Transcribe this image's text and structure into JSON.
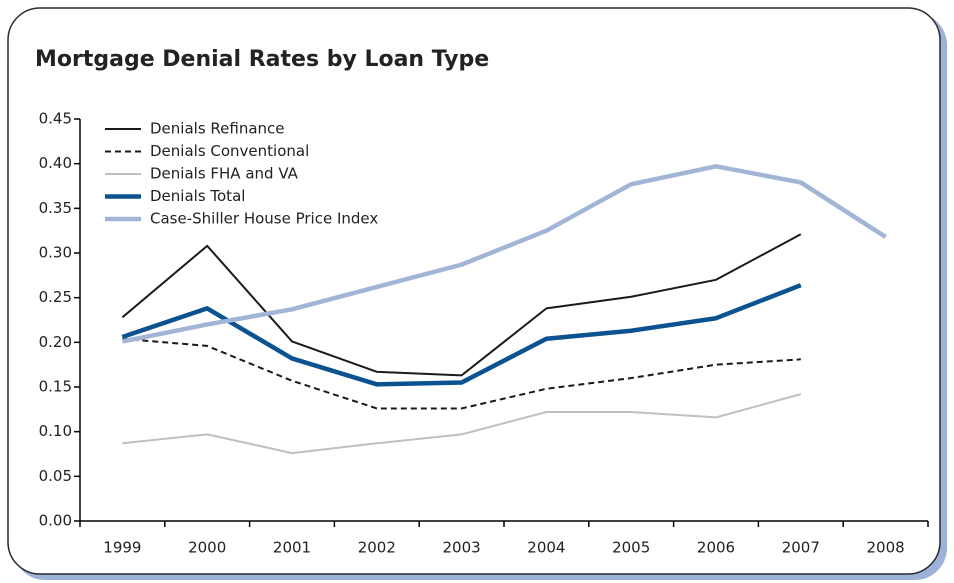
{
  "chart_data": {
    "type": "line",
    "title": "Mortgage Denial Rates by Loan Type",
    "categories": [
      "1999",
      "2000",
      "2001",
      "2002",
      "2003",
      "2004",
      "2005",
      "2006",
      "2007",
      "2008"
    ],
    "ylim": [
      0,
      0.45
    ],
    "yticks": [
      {
        "value": 0,
        "label": "0.00"
      },
      {
        "value": 0.05,
        "label": "0.05"
      },
      {
        "value": 0.1,
        "label": "0.10"
      },
      {
        "value": 0.15,
        "label": "0.15"
      },
      {
        "value": 0.2,
        "label": "0.20"
      },
      {
        "value": 0.25,
        "label": "0.25"
      },
      {
        "value": 0.3,
        "label": "0.30"
      },
      {
        "value": 0.35,
        "label": "0.35"
      },
      {
        "value": 0.4,
        "label": "0.40"
      },
      {
        "value": 0.45,
        "label": "0.45"
      }
    ],
    "grid": false,
    "legend": "upper left",
    "series": [
      {
        "name": "Denials Refinance",
        "color": "#1a1a1a",
        "width": 2,
        "style": "solid",
        "values": [
          0.228,
          0.308,
          0.201,
          0.167,
          0.163,
          0.238,
          0.251,
          0.27,
          0.321,
          null
        ]
      },
      {
        "name": "Denials Conventional",
        "color": "#1a1a1a",
        "width": 2,
        "style": "dashed",
        "values": [
          0.204,
          0.196,
          0.157,
          0.126,
          0.126,
          0.148,
          0.16,
          0.175,
          0.181,
          null
        ]
      },
      {
        "name": "Denials FHA and VA",
        "color": "#c0c0c0",
        "width": 2,
        "style": "solid",
        "values": [
          0.087,
          0.097,
          0.076,
          0.087,
          0.097,
          0.122,
          0.122,
          0.116,
          0.142,
          null
        ]
      },
      {
        "name": "Denials Total",
        "color": "#0b5290",
        "width": 4.5,
        "style": "solid",
        "values": [
          0.206,
          0.238,
          0.182,
          0.153,
          0.155,
          0.204,
          0.213,
          0.227,
          0.264,
          null
        ]
      },
      {
        "name": "Case-Shiller House Price Index",
        "color": "#a3b5d6",
        "width": 4.5,
        "style": "solid",
        "values": [
          0.201,
          0.22,
          0.237,
          0.262,
          0.287,
          0.325,
          0.377,
          0.397,
          0.379,
          0.318
        ]
      }
    ]
  }
}
